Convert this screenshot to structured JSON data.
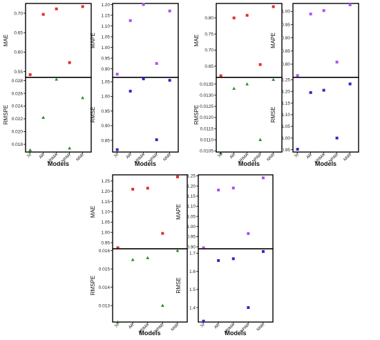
{
  "chart_data": [
    {
      "type": "scatter",
      "models": [
        "ℳ",
        "AR",
        "ARIMA",
        "NPAR",
        "NNR"
      ],
      "xlabel": "Models",
      "panels": [
        {
          "ylabel": "MAE",
          "ylim": [
            0.535,
            0.725
          ],
          "ticks": [
            "0.55",
            "0.60",
            "0.65",
            "0.70"
          ],
          "values": [
            0.542,
            0.697,
            0.711,
            0.573,
            0.717
          ],
          "color": "#e0302a",
          "marker": "square"
        },
        {
          "ylabel": "MAPE",
          "ylim": [
            0.86,
            1.205
          ],
          "ticks": [
            "0.90",
            "0.95",
            "1.00",
            "1.05",
            "1.10",
            "1.15",
            "1.20"
          ],
          "values": [
            0.875,
            1.125,
            1.2,
            0.925,
            1.17
          ],
          "color": "#b04ff0",
          "marker": "square"
        },
        {
          "ylabel": "RMSPE",
          "ylim": [
            0.0168,
            0.0285
          ],
          "ticks": [
            "0.018",
            "0.020",
            "0.022",
            "0.024",
            "0.026",
            "0.028"
          ],
          "values": [
            0.0171,
            0.0222,
            0.0282,
            0.0174,
            0.0253
          ],
          "color": "#2e8b2e",
          "marker": "triangle"
        },
        {
          "ylabel": "RMSE",
          "ylim": [
            0.81,
            1.065
          ],
          "ticks": [
            "0.85",
            "0.90",
            "0.95",
            "1.00",
            "1.05"
          ],
          "values": [
            0.818,
            1.018,
            1.06,
            0.852,
            1.055
          ],
          "color": "#2a2ac8",
          "marker": "square"
        }
      ]
    },
    {
      "type": "scatter",
      "models": [
        "ℳ",
        "AR",
        "ARIMA",
        "NPAR",
        "NNR"
      ],
      "xlabel": "Models",
      "panels": [
        {
          "ylabel": "MAE",
          "ylim": [
            0.615,
            0.845
          ],
          "ticks": [
            "0.65",
            "0.70",
            "0.75",
            "0.80"
          ],
          "values": [
            0.62,
            0.8,
            0.808,
            0.655,
            0.835
          ],
          "color": "#e0302a",
          "marker": "square"
        },
        {
          "ylabel": "MAPE",
          "ylim": [
            0.75,
            1.03
          ],
          "ticks": [
            "0.80",
            "0.85",
            "0.90",
            "0.95",
            "1.00"
          ],
          "values": [
            0.757,
            0.99,
            1.003,
            0.808,
            1.025
          ],
          "color": "#b04ff0",
          "marker": "square"
        },
        {
          "ylabel": "RMSPE",
          "ylim": [
            0.01045,
            0.0138
          ],
          "ticks": [
            "0.0105",
            "0.0110",
            "0.0115",
            "0.0120",
            "0.0125",
            "0.0130",
            "0.0135"
          ],
          "values": [
            0.0104,
            0.0133,
            0.0135,
            0.011,
            0.0137
          ],
          "color": "#2e8b2e",
          "marker": "triangle"
        },
        {
          "ylabel": "RMSE",
          "ylim": [
            0.94,
            1.26
          ],
          "ticks": [
            "0.95",
            "1.00",
            "1.05",
            "1.10",
            "1.15",
            "1.20",
            "1.25"
          ],
          "values": [
            0.952,
            1.195,
            1.205,
            1.0,
            1.232
          ],
          "color": "#2a2ac8",
          "marker": "square"
        }
      ]
    },
    {
      "type": "scatter",
      "models": [
        "ℳ",
        "AR",
        "ARIMA",
        "NPAR",
        "NNR"
      ],
      "xlabel": "Models",
      "panels": [
        {
          "ylabel": "MAE",
          "ylim": [
            0.92,
            1.28
          ],
          "ticks": [
            "0.95",
            "1.00",
            "1.05",
            "1.10",
            "1.15",
            "1.20",
            "1.25"
          ],
          "values": [
            0.925,
            1.21,
            1.215,
            0.995,
            1.27
          ],
          "color": "#e0302a",
          "marker": "square"
        },
        {
          "ylabel": "MAPE",
          "ylim": [
            0.89,
            1.255
          ],
          "ticks": [
            "0.90",
            "0.95",
            "1.00",
            "1.05",
            "1.10",
            "1.15",
            "1.20",
            "1.25"
          ],
          "values": [
            0.895,
            1.18,
            1.19,
            0.965,
            1.24
          ],
          "color": "#b04ff0",
          "marker": "square"
        },
        {
          "ylabel": "RMSPE",
          "ylim": [
            0.0121,
            0.0161
          ],
          "ticks": [
            "0.013",
            "0.014",
            "0.015",
            "0.016"
          ],
          "values": [
            0.0121,
            0.0155,
            0.0156,
            0.013,
            0.016
          ],
          "color": "#2e8b2e",
          "marker": "triangle"
        },
        {
          "ylabel": "RMSE",
          "ylim": [
            1.32,
            1.725
          ],
          "ticks": [
            "1.4",
            "1.5",
            "1.6",
            "1.7"
          ],
          "values": [
            1.325,
            1.66,
            1.67,
            1.4,
            1.71
          ],
          "color": "#2a2ac8",
          "marker": "square"
        }
      ]
    }
  ]
}
